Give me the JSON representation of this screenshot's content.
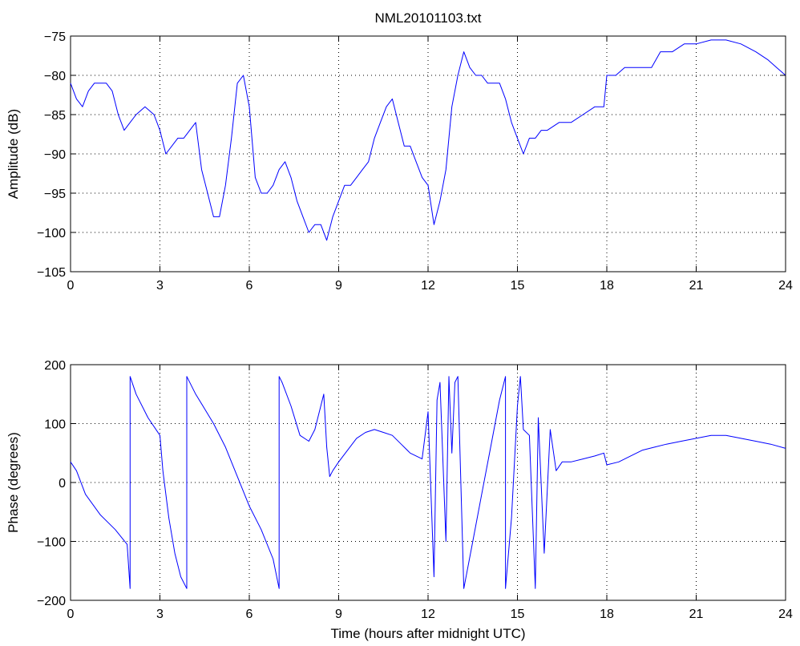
{
  "title": "NML20101103.txt",
  "colors": {
    "series": "#0000ff",
    "axes": "#000000",
    "grid": "#000000",
    "background": "#ffffff"
  },
  "chart_data": [
    {
      "type": "line",
      "title": "NML20101103.txt",
      "xlabel": "",
      "ylabel": "Amplitude (dB)",
      "xlim": [
        0,
        24
      ],
      "ylim": [
        -105,
        -75
      ],
      "xticks": [
        0,
        3,
        6,
        9,
        12,
        15,
        18,
        21,
        24
      ],
      "xtick_labels": [
        "0",
        "3",
        "6",
        "9",
        "12",
        "15",
        "18",
        "21",
        "24"
      ],
      "yticks": [
        -75,
        -80,
        -85,
        -90,
        -95,
        -100,
        -105
      ],
      "ytick_labels": [
        "−75",
        "−80",
        "−85",
        "−90",
        "−95",
        "−100",
        "−105"
      ],
      "grid": true,
      "series": [
        {
          "color": "#0000ff",
          "x": [
            0,
            0.2,
            0.4,
            0.6,
            0.8,
            1.0,
            1.2,
            1.4,
            1.6,
            1.8,
            2.0,
            2.2,
            2.5,
            2.8,
            3.0,
            3.2,
            3.4,
            3.6,
            3.8,
            4.0,
            4.2,
            4.4,
            4.6,
            4.8,
            5.0,
            5.2,
            5.4,
            5.6,
            5.8,
            6.0,
            6.2,
            6.4,
            6.6,
            6.8,
            7.0,
            7.2,
            7.4,
            7.6,
            7.8,
            8.0,
            8.2,
            8.4,
            8.6,
            8.8,
            9.0,
            9.2,
            9.4,
            9.6,
            9.8,
            10.0,
            10.2,
            10.4,
            10.6,
            10.8,
            11.0,
            11.2,
            11.4,
            11.6,
            11.8,
            12.0,
            12.2,
            12.4,
            12.6,
            12.8,
            13.0,
            13.2,
            13.4,
            13.6,
            13.8,
            14.0,
            14.2,
            14.4,
            14.6,
            14.8,
            15.0,
            15.2,
            15.4,
            15.6,
            15.8,
            16.0,
            16.4,
            16.8,
            17.2,
            17.6,
            17.9,
            18.0,
            18.3,
            18.6,
            18.9,
            19.2,
            19.5,
            19.8,
            20.2,
            20.6,
            21.0,
            21.5,
            22.0,
            22.5,
            23.0,
            23.4,
            23.7,
            24.0
          ],
          "y": [
            -81,
            -83,
            -84,
            -82,
            -81,
            -81,
            -81,
            -82,
            -85,
            -87,
            -86,
            -85,
            -84,
            -85,
            -87,
            -90,
            -89,
            -88,
            -88,
            -87,
            -86,
            -92,
            -95,
            -98,
            -98,
            -94,
            -88,
            -81,
            -80,
            -84,
            -93,
            -95,
            -95,
            -94,
            -92,
            -91,
            -93,
            -96,
            -98,
            -100,
            -99,
            -99,
            -101,
            -98,
            -96,
            -94,
            -94,
            -93,
            -92,
            -91,
            -88,
            -86,
            -84,
            -83,
            -86,
            -89,
            -89,
            -91,
            -93,
            -94,
            -99,
            -96,
            -92,
            -84,
            -80,
            -77,
            -79,
            -80,
            -80,
            -81,
            -81,
            -81,
            -83,
            -86,
            -88,
            -90,
            -88,
            -88,
            -87,
            -87,
            -86,
            -86,
            -85,
            -84,
            -84,
            -80,
            -80,
            -79,
            -79,
            -79,
            -79,
            -77,
            -77,
            -76,
            -76,
            -75.5,
            -75.5,
            -76,
            -77,
            -78,
            -79,
            -80
          ]
        }
      ]
    },
    {
      "type": "line",
      "title": "",
      "xlabel": "Time (hours after midnight UTC)",
      "ylabel": "Phase (degrees)",
      "xlim": [
        0,
        24
      ],
      "ylim": [
        -200,
        200
      ],
      "xticks": [
        0,
        3,
        6,
        9,
        12,
        15,
        18,
        21,
        24
      ],
      "xtick_labels": [
        "0",
        "3",
        "6",
        "9",
        "12",
        "15",
        "18",
        "21",
        "24"
      ],
      "yticks": [
        200,
        100,
        0,
        -100,
        -200
      ],
      "ytick_labels": [
        "200",
        "100",
        "0",
        "−100",
        "−200"
      ],
      "grid": true,
      "series": [
        {
          "color": "#0000ff",
          "x": [
            0,
            0.2,
            0.5,
            1.0,
            1.5,
            1.9,
            2.0,
            2.0,
            2.2,
            2.6,
            3.0,
            3.1,
            3.3,
            3.5,
            3.7,
            3.9,
            3.9,
            4.2,
            4.5,
            4.8,
            5.2,
            5.6,
            6.0,
            6.4,
            6.8,
            7.0,
            7.0,
            7.1,
            7.4,
            7.7,
            8.0,
            8.2,
            8.4,
            8.5,
            8.6,
            8.7,
            8.8,
            9.0,
            9.3,
            9.6,
            9.9,
            10.2,
            10.5,
            10.8,
            11.1,
            11.4,
            11.8,
            12.0,
            12.2,
            12.3,
            12.4,
            12.6,
            12.7,
            12.8,
            12.9,
            13.0,
            13.2,
            13.5,
            13.8,
            14.1,
            14.4,
            14.6,
            14.6,
            14.8,
            15.0,
            15.1,
            15.2,
            15.4,
            15.6,
            15.7,
            15.9,
            16.1,
            16.3,
            16.5,
            16.8,
            17.2,
            17.6,
            17.9,
            18.0,
            18.4,
            18.8,
            19.2,
            19.6,
            20.0,
            20.5,
            21.0,
            21.5,
            22.0,
            22.5,
            23.0,
            23.5,
            24.0
          ],
          "y": [
            35,
            20,
            -20,
            -55,
            -80,
            -105,
            -180,
            180,
            150,
            110,
            80,
            20,
            -60,
            -120,
            -160,
            -180,
            180,
            150,
            125,
            100,
            60,
            10,
            -40,
            -80,
            -130,
            -180,
            180,
            170,
            130,
            80,
            70,
            90,
            130,
            150,
            60,
            10,
            20,
            35,
            55,
            75,
            85,
            90,
            85,
            80,
            65,
            50,
            40,
            120,
            -160,
            140,
            170,
            -100,
            180,
            50,
            170,
            180,
            -180,
            -100,
            -20,
            60,
            140,
            180,
            -180,
            -60,
            130,
            180,
            90,
            80,
            -180,
            110,
            -120,
            90,
            20,
            35,
            35,
            40,
            45,
            50,
            30,
            35,
            45,
            55,
            60,
            65,
            70,
            75,
            80,
            80,
            75,
            70,
            65,
            58
          ]
        }
      ]
    }
  ]
}
